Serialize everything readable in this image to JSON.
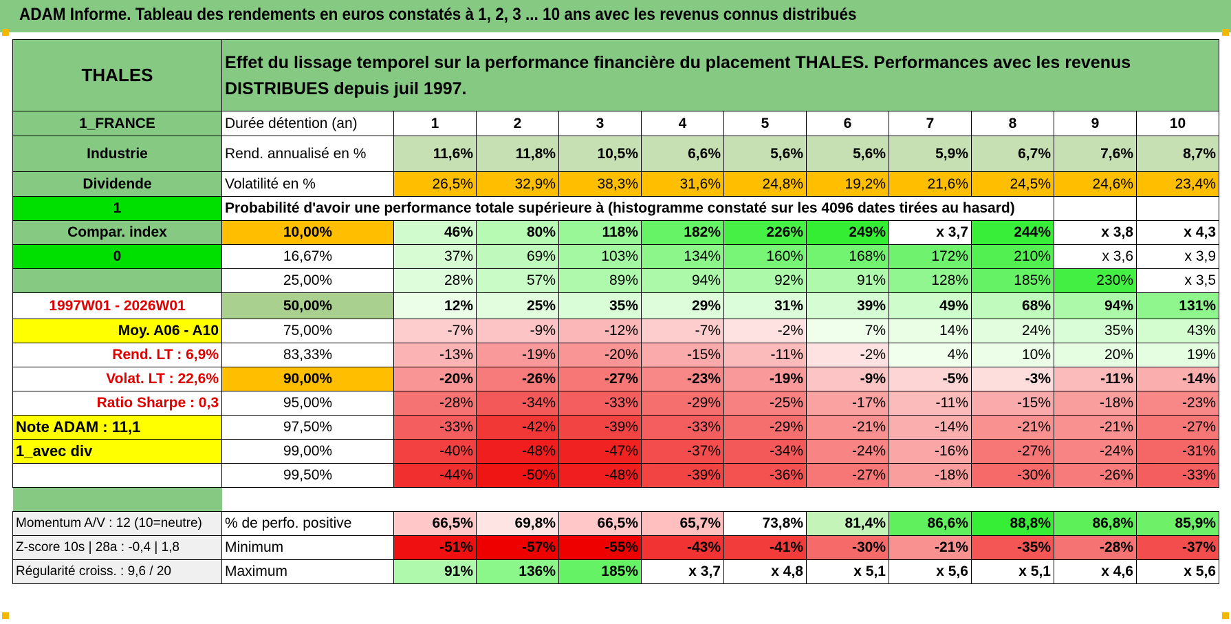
{
  "title": "ADAM Informe. Tableau des rendements en euros constatés à 1, 2, 3 ... 10 ans avec les revenus connus distribués",
  "header": {
    "name": "THALES",
    "desc": "Effet du lissage temporel sur la performance financière du placement THALES. Performances avec les revenus DISTRIBUES depuis juil 1997."
  },
  "years": [
    "1",
    "2",
    "3",
    "4",
    "5",
    "6",
    "7",
    "8",
    "9",
    "10"
  ],
  "left": {
    "country": "1_FRANCE",
    "sector": "Industrie",
    "dividende": "Dividende",
    "one": "1",
    "compar": "Compar. index",
    "zero": "0",
    "period": "1997W01 - 2026W01",
    "moy": "Moy. A06 - A10",
    "rend_lt": "Rend. LT :   6,9%",
    "volat_lt": "Volat. LT :   22,6%",
    "sharpe": "Ratio Sharpe :    0,3",
    "note": "Note ADAM : 11,1",
    "avec_div": "1_avec div",
    "momentum": "Momentum A/V : 12 (10=neutre)",
    "zscore": "Z-score 10s | 28a : -0,4 | 1,8",
    "regularite": "Régularité croiss. : 9,6 / 20"
  },
  "labels": {
    "duree": "Durée détention (an)",
    "rend": "Rend. annualisé en %",
    "vol": "Volatilité en %",
    "proba": "Probabilité d'avoir une performance totale supérieure à (histogramme constaté sur les 4096 dates tirées au hasard)",
    "positive": "% de perfo. positive",
    "minimum": "Minimum",
    "maximum": "Maximum"
  },
  "rend": [
    "11,6%",
    "11,8%",
    "10,5%",
    "6,6%",
    "5,6%",
    "5,6%",
    "5,9%",
    "6,7%",
    "7,6%",
    "8,7%"
  ],
  "vol": [
    "26,5%",
    "32,9%",
    "38,3%",
    "31,6%",
    "24,8%",
    "19,2%",
    "21,6%",
    "24,5%",
    "24,6%",
    "23,4%"
  ],
  "prob": [
    {
      "p": "10,00%",
      "v": [
        "46%",
        "80%",
        "118%",
        "182%",
        "226%",
        "249%",
        "x 3,7",
        "244%",
        "x 3,8",
        "x 4,3"
      ]
    },
    {
      "p": "16,67%",
      "v": [
        "37%",
        "69%",
        "103%",
        "134%",
        "160%",
        "168%",
        "172%",
        "210%",
        "x 3,6",
        "x 3,9"
      ]
    },
    {
      "p": "25,00%",
      "v": [
        "28%",
        "57%",
        "89%",
        "94%",
        "92%",
        "91%",
        "128%",
        "185%",
        "230%",
        "x 3,5"
      ]
    },
    {
      "p": "50,00%",
      "v": [
        "12%",
        "25%",
        "35%",
        "29%",
        "31%",
        "39%",
        "49%",
        "68%",
        "94%",
        "131%"
      ]
    },
    {
      "p": "75,00%",
      "v": [
        "-7%",
        "-9%",
        "-12%",
        "-7%",
        "-2%",
        "7%",
        "14%",
        "24%",
        "35%",
        "43%"
      ]
    },
    {
      "p": "83,33%",
      "v": [
        "-13%",
        "-19%",
        "-20%",
        "-15%",
        "-11%",
        "-2%",
        "4%",
        "10%",
        "20%",
        "19%"
      ]
    },
    {
      "p": "90,00%",
      "v": [
        "-20%",
        "-26%",
        "-27%",
        "-23%",
        "-19%",
        "-9%",
        "-5%",
        "-3%",
        "-11%",
        "-14%"
      ]
    },
    {
      "p": "95,00%",
      "v": [
        "-28%",
        "-34%",
        "-33%",
        "-29%",
        "-25%",
        "-17%",
        "-11%",
        "-15%",
        "-18%",
        "-23%"
      ]
    },
    {
      "p": "97,50%",
      "v": [
        "-33%",
        "-42%",
        "-39%",
        "-33%",
        "-29%",
        "-21%",
        "-14%",
        "-21%",
        "-21%",
        "-27%"
      ]
    },
    {
      "p": "99,00%",
      "v": [
        "-40%",
        "-48%",
        "-47%",
        "-37%",
        "-34%",
        "-24%",
        "-16%",
        "-27%",
        "-24%",
        "-31%"
      ]
    },
    {
      "p": "99,50%",
      "v": [
        "-44%",
        "-50%",
        "-48%",
        "-39%",
        "-36%",
        "-27%",
        "-18%",
        "-30%",
        "-26%",
        "-33%"
      ]
    }
  ],
  "positive": [
    "66,5%",
    "69,8%",
    "66,5%",
    "65,7%",
    "73,8%",
    "81,4%",
    "86,6%",
    "88,8%",
    "86,8%",
    "85,9%"
  ],
  "minimum": [
    "-51%",
    "-57%",
    "-55%",
    "-43%",
    "-41%",
    "-30%",
    "-21%",
    "-35%",
    "-28%",
    "-37%"
  ],
  "maximum": [
    "91%",
    "136%",
    "185%",
    "x 3,7",
    "x 4,8",
    "x 5,1",
    "x 5,6",
    "x 5,1",
    "x 4,6",
    "x 5,6"
  ],
  "colors": {
    "header_green": "#85c983",
    "bright_green": "#00e000",
    "orange": "#ffbf00",
    "yellow": "#ffff00",
    "red_text": "#e00000",
    "light_green": "#c6e0b4",
    "median_green": "#a9d08e"
  }
}
